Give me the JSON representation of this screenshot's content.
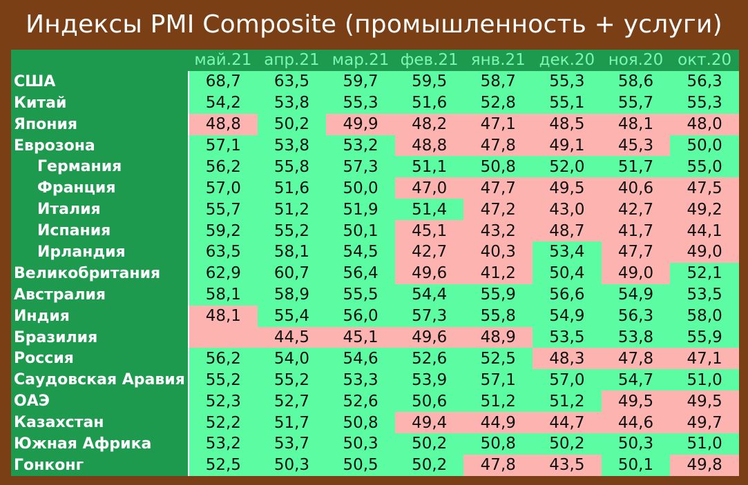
{
  "title": "Индексы PMI Composite (промышленность + услуги)",
  "colors": {
    "frame": "#7a3f14",
    "header_bg": "#1e9a4f",
    "header_text": "#7cf7b4",
    "above_50": "#5cfca2",
    "below_50": "#fdb4b0"
  },
  "columns": [
    "май.21",
    "апр.21",
    "мар.21",
    "фев.21",
    "янв.21",
    "дек.20",
    "ноя.20",
    "окт.20"
  ],
  "rows": [
    {
      "country": "США",
      "sub": false,
      "values": [
        "68,7",
        "63,5",
        "59,7",
        "59,5",
        "58,7",
        "55,3",
        "58,6",
        "56,3"
      ]
    },
    {
      "country": "Китай",
      "sub": false,
      "values": [
        "54,2",
        "53,8",
        "55,3",
        "51,6",
        "52,8",
        "55,1",
        "55,7",
        "55,3"
      ]
    },
    {
      "country": "Япония",
      "sub": false,
      "values": [
        "48,8",
        "50,2",
        "49,9",
        "48,2",
        "47,1",
        "48,5",
        "48,1",
        "48,0"
      ]
    },
    {
      "country": "Еврозона",
      "sub": false,
      "values": [
        "57,1",
        "53,8",
        "53,2",
        "48,8",
        "47,8",
        "49,1",
        "45,3",
        "50,0"
      ]
    },
    {
      "country": "Германия",
      "sub": true,
      "values": [
        "56,2",
        "55,8",
        "57,3",
        "51,1",
        "50,8",
        "52,0",
        "51,7",
        "55,0"
      ]
    },
    {
      "country": "Франция",
      "sub": true,
      "values": [
        "57,0",
        "51,6",
        "50,0",
        "47,0",
        "47,7",
        "49,5",
        "40,6",
        "47,5"
      ]
    },
    {
      "country": "Италия",
      "sub": true,
      "values": [
        "55,7",
        "51,2",
        "51,9",
        "51,4",
        "47,2",
        "43,0",
        "42,7",
        "49,2"
      ]
    },
    {
      "country": "Испания",
      "sub": true,
      "values": [
        "59,2",
        "55,2",
        "50,1",
        "45,1",
        "43,2",
        "48,7",
        "41,7",
        "44,1"
      ]
    },
    {
      "country": "Ирландия",
      "sub": true,
      "values": [
        "63,5",
        "58,1",
        "54,5",
        "42,7",
        "40,3",
        "53,4",
        "47,7",
        "49,0"
      ]
    },
    {
      "country": "Великобритания",
      "sub": false,
      "values": [
        "62,9",
        "60,7",
        "56,4",
        "49,6",
        "41,2",
        "50,4",
        "49,0",
        "52,1"
      ]
    },
    {
      "country": "Австралия",
      "sub": false,
      "values": [
        "58,1",
        "58,9",
        "55,5",
        "54,4",
        "55,9",
        "56,6",
        "54,9",
        "53,5"
      ]
    },
    {
      "country": "Индия",
      "sub": false,
      "values": [
        "48,1",
        "55,4",
        "56,0",
        "57,3",
        "55,8",
        "54,9",
        "56,3",
        "58,0"
      ]
    },
    {
      "country": "Бразилия",
      "sub": false,
      "values": [
        "",
        "44,5",
        "45,1",
        "49,6",
        "48,9",
        "53,5",
        "53,8",
        "55,9"
      ]
    },
    {
      "country": "Россия",
      "sub": false,
      "values": [
        "56,2",
        "54,0",
        "54,6",
        "52,6",
        "52,5",
        "48,3",
        "47,8",
        "47,1"
      ]
    },
    {
      "country": "Саудовская Аравия",
      "sub": false,
      "values": [
        "55,2",
        "55,2",
        "53,3",
        "53,9",
        "57,1",
        "57,0",
        "54,7",
        "51,0"
      ]
    },
    {
      "country": "ОАЭ",
      "sub": false,
      "values": [
        "52,3",
        "52,7",
        "52,6",
        "50,6",
        "51,2",
        "51,2",
        "49,5",
        "49,5"
      ]
    },
    {
      "country": "Казахстан",
      "sub": false,
      "values": [
        "52,2",
        "51,7",
        "50,8",
        "49,4",
        "44,9",
        "44,7",
        "44,6",
        "49,7"
      ]
    },
    {
      "country": "Южная Африка",
      "sub": false,
      "values": [
        "53,2",
        "53,7",
        "50,3",
        "50,2",
        "50,8",
        "50,2",
        "50,3",
        "51,0"
      ]
    },
    {
      "country": "Гонконг",
      "sub": false,
      "values": [
        "52,5",
        "50,3",
        "50,5",
        "50,2",
        "47,8",
        "43,5",
        "50,1",
        "49,8"
      ]
    }
  ],
  "cell_colors": [
    [
      "g",
      "g",
      "g",
      "g",
      "g",
      "g",
      "g",
      "g"
    ],
    [
      "g",
      "g",
      "g",
      "g",
      "g",
      "g",
      "g",
      "g"
    ],
    [
      "r",
      "g",
      "r",
      "r",
      "r",
      "r",
      "r",
      "r"
    ],
    [
      "g",
      "g",
      "g",
      "r",
      "r",
      "r",
      "r",
      "g"
    ],
    [
      "g",
      "g",
      "g",
      "g",
      "g",
      "g",
      "g",
      "g"
    ],
    [
      "g",
      "g",
      "g",
      "r",
      "r",
      "r",
      "r",
      "r"
    ],
    [
      "g",
      "g",
      "g",
      "g",
      "r",
      "r",
      "r",
      "r"
    ],
    [
      "g",
      "g",
      "g",
      "r",
      "r",
      "r",
      "r",
      "r"
    ],
    [
      "g",
      "g",
      "g",
      "r",
      "r",
      "g",
      "r",
      "r"
    ],
    [
      "g",
      "g",
      "g",
      "r",
      "r",
      "g",
      "r",
      "g"
    ],
    [
      "g",
      "g",
      "g",
      "g",
      "g",
      "g",
      "g",
      "g"
    ],
    [
      "r",
      "g",
      "g",
      "g",
      "g",
      "g",
      "g",
      "g"
    ],
    [
      "r",
      "r",
      "r",
      "r",
      "r",
      "g",
      "g",
      "g"
    ],
    [
      "g",
      "g",
      "g",
      "g",
      "g",
      "r",
      "r",
      "r"
    ],
    [
      "g",
      "g",
      "g",
      "g",
      "g",
      "g",
      "g",
      "g"
    ],
    [
      "g",
      "g",
      "g",
      "g",
      "g",
      "g",
      "r",
      "r"
    ],
    [
      "g",
      "g",
      "g",
      "r",
      "r",
      "r",
      "r",
      "r"
    ],
    [
      "g",
      "g",
      "g",
      "g",
      "g",
      "g",
      "g",
      "g"
    ],
    [
      "g",
      "g",
      "g",
      "g",
      "r",
      "r",
      "g",
      "r"
    ]
  ]
}
